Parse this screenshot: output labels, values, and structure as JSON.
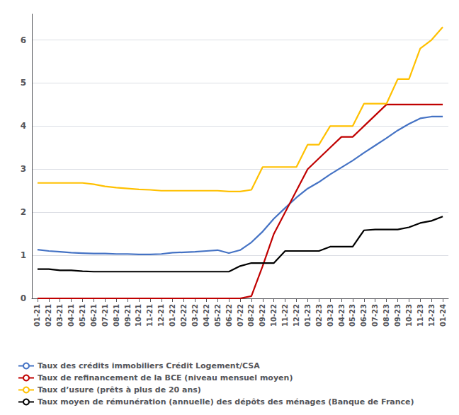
{
  "chart_data": {
    "type": "line",
    "categories": [
      "01-21",
      "02-21",
      "03-21",
      "04-21",
      "05-21",
      "06-21",
      "07-21",
      "08-21",
      "09-21",
      "10-21",
      "11-21",
      "12-21",
      "01-22",
      "02-22",
      "03-22",
      "04-22",
      "05-22",
      "06-22",
      "07-22",
      "08-22",
      "09-22",
      "10-22",
      "11-22",
      "12-22",
      "01-23",
      "02-23",
      "03-23",
      "04-23",
      "05-23",
      "06-23",
      "07-23",
      "08-23",
      "09-23",
      "10-23",
      "11-23",
      "12-23",
      "01-24"
    ],
    "series": [
      {
        "name": "Taux des crédits immobiliers Crédit Logement/CSA",
        "color": "#4472C4",
        "values": [
          1.13,
          1.1,
          1.08,
          1.06,
          1.05,
          1.04,
          1.04,
          1.03,
          1.03,
          1.02,
          1.02,
          1.03,
          1.06,
          1.07,
          1.08,
          1.1,
          1.12,
          1.05,
          1.12,
          1.3,
          1.55,
          1.85,
          2.1,
          2.34,
          2.55,
          2.7,
          2.88,
          3.04,
          3.2,
          3.38,
          3.55,
          3.72,
          3.9,
          4.05,
          4.18,
          4.22,
          4.22
        ]
      },
      {
        "name": "Taux de refinancement de la BCE (niveau mensuel moyen)",
        "color": "#C00000",
        "values": [
          0.0,
          0.0,
          0.0,
          0.0,
          0.0,
          0.0,
          0.0,
          0.0,
          0.0,
          0.0,
          0.0,
          0.0,
          0.0,
          0.0,
          0.0,
          0.0,
          0.0,
          0.0,
          0.0,
          0.05,
          0.75,
          1.5,
          2.0,
          2.5,
          3.0,
          3.25,
          3.5,
          3.75,
          3.75,
          4.0,
          4.25,
          4.5,
          4.5,
          4.5,
          4.5,
          4.5,
          4.5
        ]
      },
      {
        "name": "Taux d’usure (prêts à plus de 20 ans)",
        "color": "#FFC000",
        "values": [
          2.68,
          2.68,
          2.68,
          2.68,
          2.68,
          2.65,
          2.6,
          2.57,
          2.55,
          2.53,
          2.52,
          2.5,
          2.5,
          2.5,
          2.5,
          2.5,
          2.5,
          2.48,
          2.48,
          2.52,
          3.05,
          3.05,
          3.05,
          3.05,
          3.57,
          3.57,
          4.0,
          4.0,
          4.0,
          4.52,
          4.52,
          4.52,
          5.09,
          5.09,
          5.8,
          6.0,
          6.3
        ]
      },
      {
        "name": "Taux moyen de rémunération (annuelle) des dépôts des ménages (Banque de France)",
        "color": "#000000",
        "values": [
          0.68,
          0.68,
          0.65,
          0.65,
          0.63,
          0.62,
          0.62,
          0.62,
          0.62,
          0.62,
          0.62,
          0.62,
          0.62,
          0.62,
          0.62,
          0.62,
          0.62,
          0.62,
          0.75,
          0.82,
          0.82,
          0.82,
          1.1,
          1.1,
          1.1,
          1.1,
          1.2,
          1.2,
          1.2,
          1.58,
          1.6,
          1.6,
          1.6,
          1.65,
          1.75,
          1.8,
          1.9
        ]
      }
    ],
    "ylim": [
      0,
      6.6
    ],
    "yticks": [
      0,
      1,
      2,
      3,
      4,
      5,
      6
    ],
    "grid": true,
    "legend": "bottom"
  }
}
